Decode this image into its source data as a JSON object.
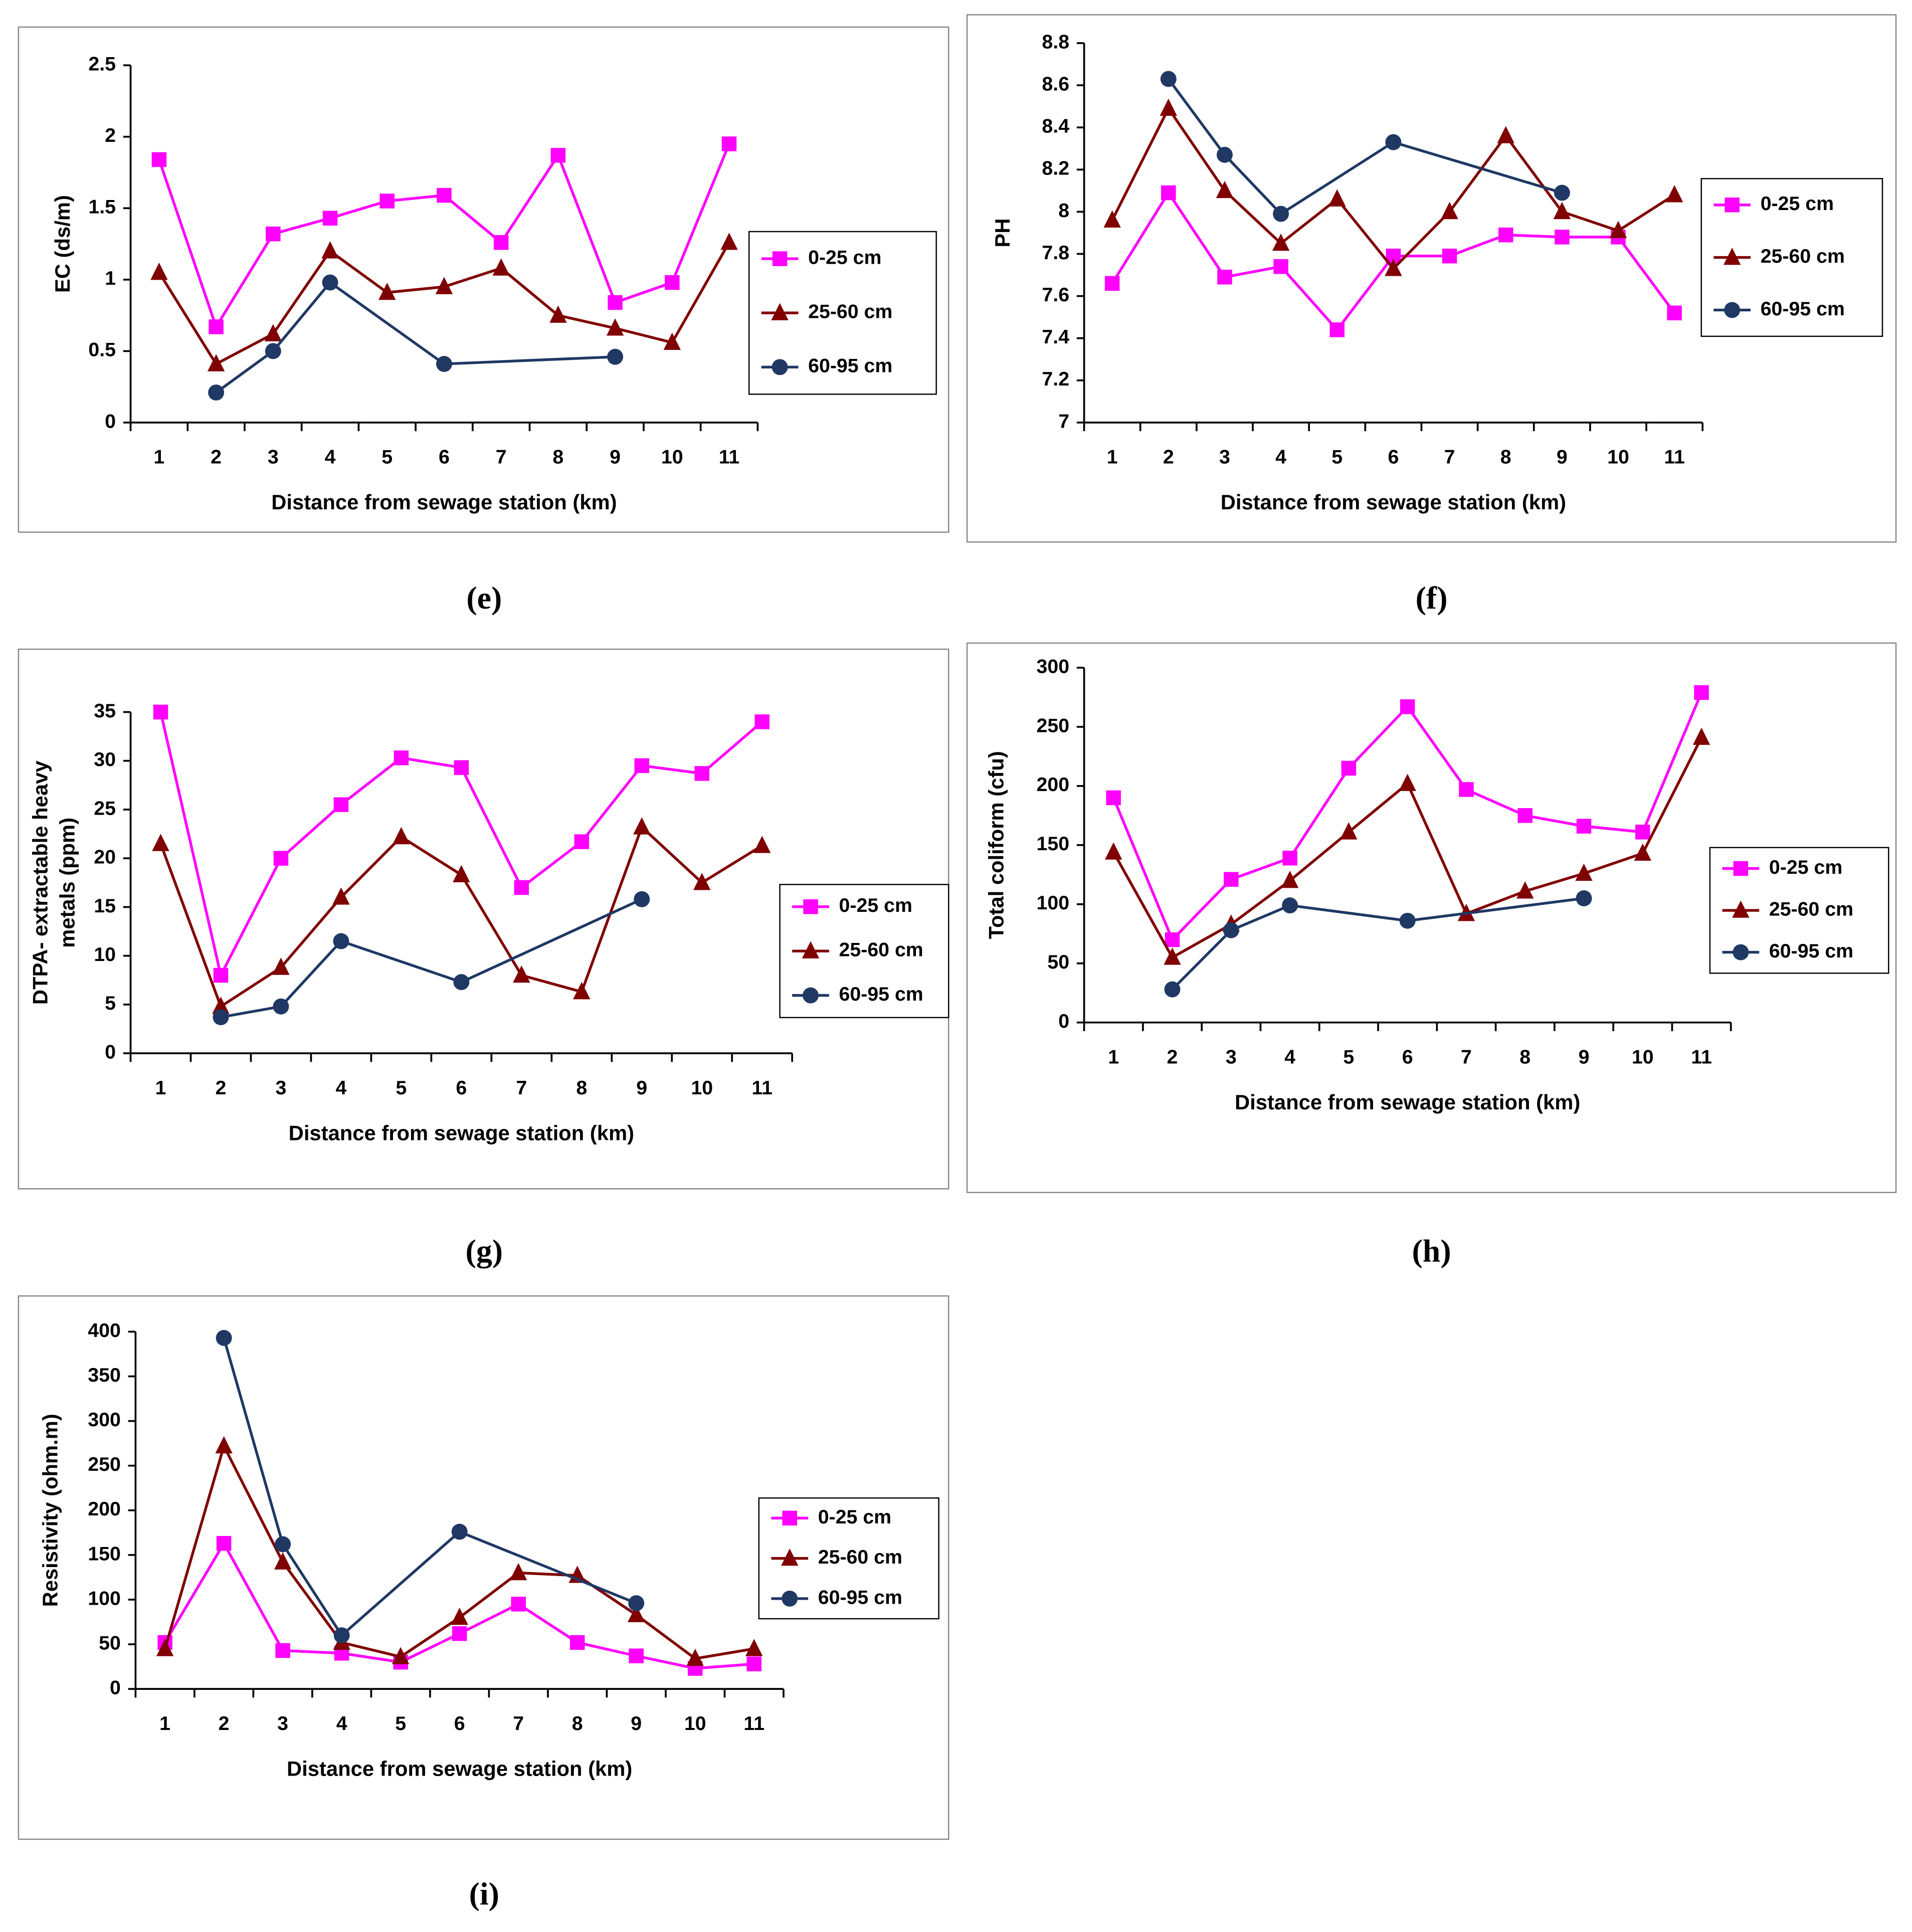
{
  "chart_data": [
    {
      "type": "line",
      "caption": "(e)",
      "ylabel": "EC (ds/m)",
      "xlabel": "Distance from sewage station (km)",
      "xlim": [
        0.5,
        11.5
      ],
      "xticks": [
        1,
        2,
        3,
        4,
        5,
        6,
        7,
        8,
        9,
        10,
        11
      ],
      "ylim": [
        0,
        2.5
      ],
      "yticks": [
        0,
        0.5,
        1,
        1.5,
        2,
        2.5
      ],
      "series": [
        {
          "name": "0-25 cm",
          "color": "#ff00ff",
          "marker": "square",
          "x": [
            1,
            2,
            3,
            4,
            5,
            6,
            7,
            8,
            9,
            10,
            11
          ],
          "values": [
            1.84,
            0.67,
            1.32,
            1.43,
            1.55,
            1.59,
            1.26,
            1.87,
            0.84,
            0.98,
            1.95
          ]
        },
        {
          "name": "25-60 cm",
          "color": "#800000",
          "marker": "triangle",
          "x": [
            1,
            2,
            3,
            4,
            5,
            6,
            7,
            8,
            9,
            10,
            11
          ],
          "values": [
            1.05,
            0.41,
            0.62,
            1.2,
            0.91,
            0.95,
            1.08,
            0.75,
            0.66,
            0.56,
            1.26
          ]
        },
        {
          "name": "60-95 cm",
          "color": "#1f3864",
          "marker": "circle",
          "x": [
            2,
            3,
            4,
            6,
            9
          ],
          "values": [
            0.21,
            0.5,
            0.98,
            0.41,
            0.46
          ]
        }
      ]
    },
    {
      "type": "line",
      "caption": "(f)",
      "ylabel": "PH",
      "xlabel": "Distance from sewage station (km)",
      "xlim": [
        0.5,
        11.5
      ],
      "xticks": [
        1,
        2,
        3,
        4,
        5,
        6,
        7,
        8,
        9,
        10,
        11
      ],
      "ylim": [
        7,
        8.8
      ],
      "yticks": [
        7,
        7.2,
        7.4,
        7.6,
        7.8,
        8,
        8.2,
        8.4,
        8.6,
        8.8
      ],
      "series": [
        {
          "name": "0-25 cm",
          "color": "#ff00ff",
          "marker": "square",
          "x": [
            1,
            2,
            3,
            4,
            5,
            6,
            7,
            8,
            9,
            10,
            11
          ],
          "values": [
            7.66,
            8.09,
            7.69,
            7.74,
            7.44,
            7.79,
            7.79,
            7.89,
            7.88,
            7.88,
            7.52
          ]
        },
        {
          "name": "25-60 cm",
          "color": "#800000",
          "marker": "triangle",
          "x": [
            1,
            2,
            3,
            4,
            5,
            6,
            7,
            8,
            9,
            10,
            11
          ],
          "values": [
            7.96,
            8.49,
            8.1,
            7.85,
            8.06,
            7.73,
            8.0,
            8.36,
            8.0,
            7.91,
            8.08
          ]
        },
        {
          "name": "60-95 cm",
          "color": "#1f3864",
          "marker": "circle",
          "x": [
            2,
            3,
            4,
            6,
            9
          ],
          "values": [
            8.63,
            8.27,
            7.99,
            8.33,
            8.09
          ]
        }
      ]
    },
    {
      "type": "line",
      "caption": "(g)",
      "ylabel": [
        "DTPA- extractable heavy",
        "metals (ppm)"
      ],
      "xlabel": "Distance from sewage station (km)",
      "xlim": [
        0.5,
        11.5
      ],
      "xticks": [
        1,
        2,
        3,
        4,
        5,
        6,
        7,
        8,
        9,
        10,
        11
      ],
      "ylim": [
        0,
        35
      ],
      "yticks": [
        0,
        5,
        10,
        15,
        20,
        25,
        30,
        35
      ],
      "series": [
        {
          "name": "0-25 cm",
          "color": "#ff00ff",
          "marker": "square",
          "x": [
            1,
            2,
            3,
            4,
            5,
            6,
            7,
            8,
            9,
            10,
            11
          ],
          "values": [
            35,
            8,
            20,
            25.5,
            30.3,
            29.3,
            17,
            21.7,
            29.5,
            28.7,
            34
          ]
        },
        {
          "name": "25-60 cm",
          "color": "#800000",
          "marker": "triangle",
          "x": [
            1,
            2,
            3,
            4,
            5,
            6,
            7,
            8,
            9,
            10,
            11
          ],
          "values": [
            21.5,
            4.8,
            8.8,
            16,
            22.2,
            18.3,
            8,
            6.3,
            23.2,
            17.5,
            21.3
          ]
        },
        {
          "name": "60-95 cm",
          "color": "#1f3864",
          "marker": "circle",
          "x": [
            2,
            3,
            4,
            6,
            9
          ],
          "values": [
            3.7,
            4.8,
            11.5,
            7.3,
            15.8
          ]
        }
      ]
    },
    {
      "type": "line",
      "caption": "(h)",
      "ylabel": "Total coliform (cfu)",
      "xlabel": "Distance from sewage station (km)",
      "xlim": [
        0.5,
        11.5
      ],
      "xticks": [
        1,
        2,
        3,
        4,
        5,
        6,
        7,
        8,
        9,
        10,
        11
      ],
      "ylim": [
        0,
        300
      ],
      "yticks": [
        0,
        50,
        100,
        150,
        200,
        250,
        300
      ],
      "series": [
        {
          "name": "0-25 cm",
          "color": "#ff00ff",
          "marker": "square",
          "x": [
            1,
            2,
            3,
            4,
            5,
            6,
            7,
            8,
            9,
            10,
            11
          ],
          "values": [
            190,
            70,
            121,
            139,
            215,
            267,
            197,
            175,
            166,
            161,
            279
          ]
        },
        {
          "name": "25-60 cm",
          "color": "#800000",
          "marker": "triangle",
          "x": [
            1,
            2,
            3,
            4,
            5,
            6,
            7,
            8,
            9,
            10,
            11
          ],
          "values": [
            144,
            55,
            83,
            120,
            161,
            202,
            92,
            111,
            126,
            143,
            241
          ]
        },
        {
          "name": "60-95 cm",
          "color": "#1f3864",
          "marker": "circle",
          "x": [
            2,
            3,
            4,
            6,
            9
          ],
          "values": [
            28,
            78,
            99,
            86,
            105
          ]
        }
      ]
    },
    {
      "type": "line",
      "caption": "(i)",
      "ylabel": "Resistivity (ohm.m)",
      "xlabel": "Distance from sewage station (km)",
      "xlim": [
        0.5,
        11.5
      ],
      "xticks": [
        1,
        2,
        3,
        4,
        5,
        6,
        7,
        8,
        9,
        10,
        11
      ],
      "ylim": [
        0,
        400
      ],
      "yticks": [
        0,
        50,
        100,
        150,
        200,
        250,
        300,
        350,
        400
      ],
      "series": [
        {
          "name": "0-25 cm",
          "color": "#ff00ff",
          "marker": "square",
          "x": [
            1,
            2,
            3,
            4,
            5,
            6,
            7,
            8,
            9,
            10,
            11
          ],
          "values": [
            52,
            163,
            43,
            40,
            30,
            62,
            95,
            52,
            37,
            23,
            28
          ]
        },
        {
          "name": "25-60 cm",
          "color": "#800000",
          "marker": "triangle",
          "x": [
            1,
            2,
            3,
            4,
            5,
            6,
            7,
            8,
            9,
            10,
            11
          ],
          "values": [
            45,
            272,
            142,
            52,
            36,
            80,
            130,
            127,
            83,
            34,
            45
          ]
        },
        {
          "name": "60-95 cm",
          "color": "#1f3864",
          "marker": "circle",
          "x": [
            2,
            3,
            4,
            6,
            9
          ],
          "values": [
            393,
            162,
            60,
            176,
            96
          ]
        }
      ]
    }
  ]
}
